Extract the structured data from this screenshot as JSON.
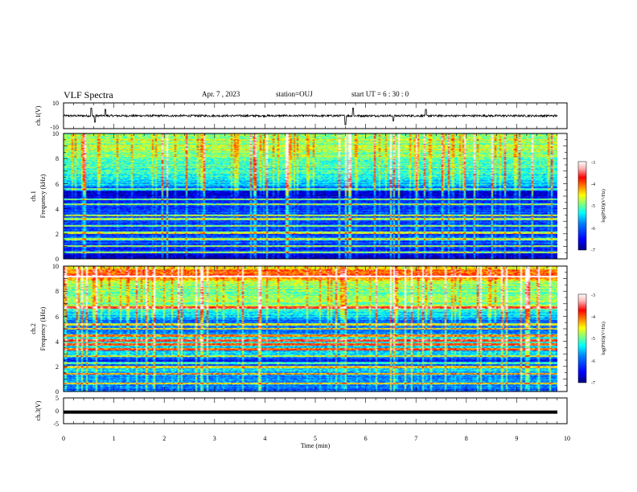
{
  "header": {
    "title": "VLF Spectra",
    "date": "Apr. 7 , 2023",
    "station": "station=OUJ",
    "start_ut": "start  UT =  6 : 30 : 0"
  },
  "colors": {
    "colormap": [
      "#00007f",
      "#0000ff",
      "#007fff",
      "#00ffff",
      "#7fff7f",
      "#ffff00",
      "#ff7f00",
      "#ff0000",
      "#7f0000",
      "#ffffff"
    ]
  },
  "chart_data": [
    {
      "panel": "ch1-waveform",
      "type": "line",
      "ylabel": "ch.1(V)",
      "ylim": [
        -10,
        10
      ],
      "yticks": [
        "10",
        "-10"
      ],
      "xlim": [
        0,
        10
      ],
      "baseline": 0,
      "noise_amplitude": 0.8,
      "spike_times_min": [
        0.55,
        0.62,
        0.83,
        5.6,
        5.75,
        6.55,
        7.2
      ],
      "spike_amplitude": [
        6,
        -5,
        5,
        -7,
        6,
        -4,
        5
      ]
    },
    {
      "panel": "ch1-spectrogram",
      "type": "heatmap",
      "ylabel": "ch.1\nFrequency (kHz)",
      "ylabel_line1": "ch.1",
      "ylabel_line2": "Frequency (kHz)",
      "ylim": [
        0,
        10
      ],
      "yticks": [
        "0",
        "2",
        "4",
        "6",
        "8",
        "10"
      ],
      "xlim": [
        0,
        9.83
      ],
      "colorbar": {
        "label": "log(PSD)(V²/Hz)",
        "range": [
          -7,
          -3
        ],
        "ticks": [
          "-3",
          "-4",
          "-5",
          "-6",
          "-7"
        ]
      },
      "profile_khz": [
        [
          0,
          -6.8
        ],
        [
          0.5,
          -6.2
        ],
        [
          1,
          -6.3
        ],
        [
          2,
          -6.1
        ],
        [
          3,
          -6.2
        ],
        [
          4,
          -6.1
        ],
        [
          4.8,
          -6.6
        ],
        [
          5.6,
          -6.5
        ],
        [
          5.8,
          -5.6
        ],
        [
          6.5,
          -5.3
        ],
        [
          7.5,
          -5.0
        ],
        [
          8.5,
          -4.8
        ],
        [
          10,
          -4.8
        ]
      ],
      "tones_khz": [
        0.5,
        1.0,
        1.55,
        2.05,
        2.6,
        3.15,
        3.45,
        4.35,
        4.75,
        5.55
      ]
    },
    {
      "panel": "ch2-spectrogram",
      "type": "heatmap",
      "ylabel": "ch.2\nFrequency (kHz)",
      "ylabel_line1": "ch.2",
      "ylabel_line2": "Frequency (kHz)",
      "ylim": [
        0,
        10
      ],
      "yticks": [
        "0",
        "2",
        "4",
        "6",
        "8",
        "10"
      ],
      "xlim": [
        0,
        9.83
      ],
      "colorbar": {
        "label": "log(PSD)(V²/Hz)",
        "range": [
          -7,
          -3
        ],
        "ticks": [
          "-3",
          "-4",
          "-5",
          "-6",
          "-7"
        ]
      },
      "profile_khz": [
        [
          0,
          -6.2
        ],
        [
          0.6,
          -5.8
        ],
        [
          1.2,
          -5.9
        ],
        [
          1.8,
          -5.5
        ],
        [
          2.3,
          -6.6
        ],
        [
          3.0,
          -5.6
        ],
        [
          3.6,
          -5.4
        ],
        [
          4.2,
          -5.2
        ],
        [
          4.8,
          -5.9
        ],
        [
          5.6,
          -6.0
        ],
        [
          6.0,
          -5.5
        ],
        [
          6.8,
          -4.9
        ],
        [
          7.6,
          -4.9
        ],
        [
          8.5,
          -4.8
        ],
        [
          9.3,
          -3.9
        ],
        [
          10,
          -4.5
        ]
      ],
      "tones_khz": [
        0.6,
        1.4,
        1.95,
        2.25,
        2.8,
        3.35,
        3.75,
        4.05,
        4.45,
        5.0,
        5.35,
        6.7,
        9.2
      ]
    },
    {
      "panel": "ch3-waveform",
      "type": "line",
      "ylabel": "ch.3(V)",
      "ylim": [
        -5,
        5
      ],
      "yticks": [
        "5",
        "0",
        "-5"
      ],
      "xlim": [
        0,
        10
      ],
      "constant_value": -0.5,
      "xlabel": "Time (min)",
      "xticks": [
        "0",
        "1",
        "2",
        "3",
        "4",
        "5",
        "6",
        "7",
        "8",
        "9",
        "10"
      ]
    }
  ]
}
